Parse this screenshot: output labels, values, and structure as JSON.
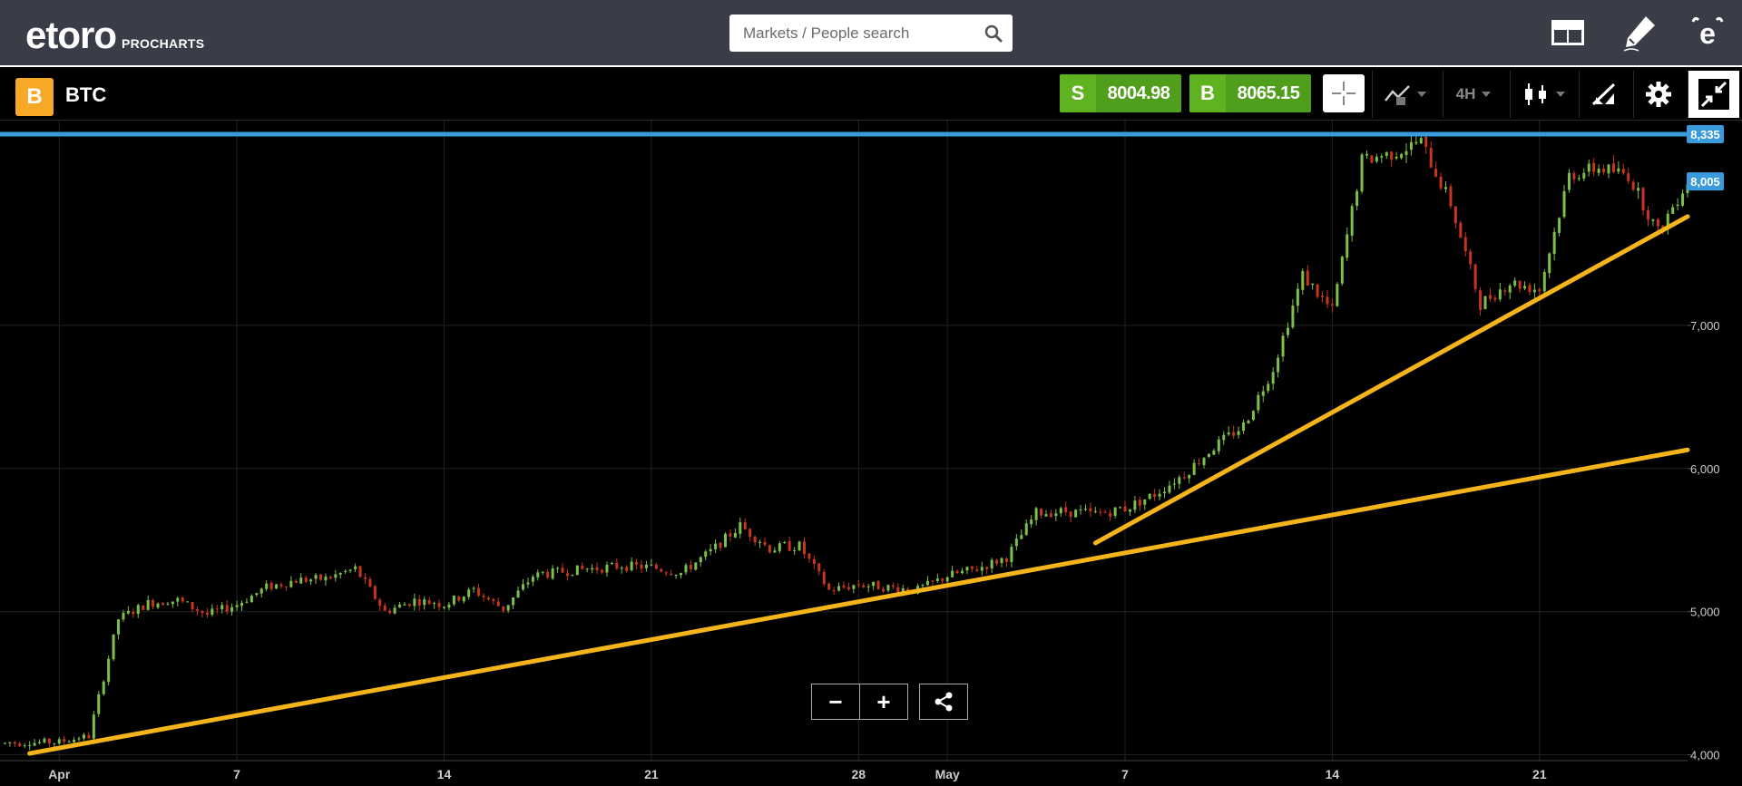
{
  "header": {
    "logo_text": "etoro",
    "logo_sub": "PROCHARTS",
    "search": {
      "placeholder": "Markets / People search"
    },
    "icons": [
      "layout-icon",
      "pencil-icon",
      "etoro-home-icon"
    ]
  },
  "toolbar": {
    "instrument": {
      "badge": "B",
      "symbol": "BTC"
    },
    "sell": {
      "letter": "S",
      "price": "8004.98"
    },
    "buy": {
      "letter": "B",
      "price": "8065.15"
    },
    "timeframe": "4H",
    "icons": [
      "crosshair-icon",
      "chart-type-icon",
      "candlestick-icon",
      "draw-tools-icon",
      "settings-icon",
      "collapse-icon"
    ]
  },
  "chart_data": {
    "type": "candlestick",
    "symbol": "BTC",
    "timeframe": "4H",
    "x_labels": [
      {
        "label": "Apr",
        "date": "2018-04-01"
      },
      {
        "label": "7",
        "date": "2018-04-07"
      },
      {
        "label": "14",
        "date": "2018-04-14"
      },
      {
        "label": "21",
        "date": "2018-04-21"
      },
      {
        "label": "28",
        "date": "2018-04-28"
      },
      {
        "label": "May",
        "date": "2018-05-01"
      },
      {
        "label": "7",
        "date": "2018-05-07"
      },
      {
        "label": "14",
        "date": "2018-05-14"
      },
      {
        "label": "21",
        "date": "2018-05-21"
      }
    ],
    "x_range": [
      "2018-03-30",
      "2018-05-26"
    ],
    "y_ticks": [
      {
        "value": 4000,
        "label": "4,000"
      },
      {
        "value": 5000,
        "label": "5,000"
      },
      {
        "value": 6000,
        "label": "6,000"
      },
      {
        "value": 7000,
        "label": "7,000"
      }
    ],
    "y_range": [
      3960,
      8430
    ],
    "price_tags": [
      {
        "value": 8335,
        "label": "8,335",
        "color": "#3a9bdc"
      },
      {
        "value": 8005,
        "label": "8,005",
        "color": "#3a9bdc"
      }
    ],
    "horizontal_lines": [
      {
        "value": 8335,
        "color": "#3a9bdc"
      }
    ],
    "trend_lines": [
      {
        "color": "#f5b51a",
        "from": {
          "date": "2018-03-31",
          "price": 4010
        },
        "to": {
          "date": "2018-05-26",
          "price": 6130
        }
      },
      {
        "color": "#f5b51a",
        "from": {
          "date": "2018-05-06",
          "price": 5480
        },
        "to": {
          "date": "2018-05-26",
          "price": 7760
        }
      }
    ],
    "price_path": [
      [
        "2018-03-30",
        4080
      ],
      [
        "2018-04-01",
        4090
      ],
      [
        "2018-04-02",
        4130
      ],
      [
        "2018-04-03",
        4950
      ],
      [
        "2018-04-04",
        5060
      ],
      [
        "2018-04-05",
        5080
      ],
      [
        "2018-04-06",
        4980
      ],
      [
        "2018-04-07",
        5050
      ],
      [
        "2018-04-08",
        5170
      ],
      [
        "2018-04-09",
        5220
      ],
      [
        "2018-04-10",
        5230
      ],
      [
        "2018-04-11",
        5300
      ],
      [
        "2018-04-12",
        5000
      ],
      [
        "2018-04-13",
        5080
      ],
      [
        "2018-04-14",
        5050
      ],
      [
        "2018-04-15",
        5150
      ],
      [
        "2018-04-16",
        5020
      ],
      [
        "2018-04-17",
        5250
      ],
      [
        "2018-04-18",
        5280
      ],
      [
        "2018-04-19",
        5300
      ],
      [
        "2018-04-20",
        5320
      ],
      [
        "2018-04-21",
        5310
      ],
      [
        "2018-04-22",
        5270
      ],
      [
        "2018-04-23",
        5420
      ],
      [
        "2018-04-24",
        5600
      ],
      [
        "2018-04-25",
        5440
      ],
      [
        "2018-04-26",
        5460
      ],
      [
        "2018-04-27",
        5150
      ],
      [
        "2018-04-28",
        5190
      ],
      [
        "2018-04-29",
        5170
      ],
      [
        "2018-04-30",
        5150
      ],
      [
        "2018-05-01",
        5250
      ],
      [
        "2018-05-02",
        5300
      ],
      [
        "2018-05-03",
        5380
      ],
      [
        "2018-05-04",
        5690
      ],
      [
        "2018-05-05",
        5700
      ],
      [
        "2018-05-06",
        5680
      ],
      [
        "2018-05-07",
        5720
      ],
      [
        "2018-05-08",
        5820
      ],
      [
        "2018-05-09",
        5960
      ],
      [
        "2018-05-10",
        6150
      ],
      [
        "2018-05-11",
        6300
      ],
      [
        "2018-05-12",
        6700
      ],
      [
        "2018-05-13",
        7350
      ],
      [
        "2018-05-14",
        7100
      ],
      [
        "2018-05-15",
        8150
      ],
      [
        "2018-05-16",
        8200
      ],
      [
        "2018-05-17",
        8280
      ],
      [
        "2018-05-18",
        7850
      ],
      [
        "2018-05-19",
        7150
      ],
      [
        "2018-05-20",
        7300
      ],
      [
        "2018-05-21",
        7250
      ],
      [
        "2018-05-22",
        8050
      ],
      [
        "2018-05-23",
        8100
      ],
      [
        "2018-05-24",
        8050
      ],
      [
        "2018-05-25",
        7650
      ],
      [
        "2018-05-26",
        8010
      ]
    ]
  },
  "zoom": {
    "out_label": "−",
    "in_label": "+"
  },
  "colors": {
    "topbar": "#3a3d47",
    "up": "#7cc04a",
    "down": "#c8351e",
    "accent": "#3a9bdc",
    "trend": "#f5b51a",
    "trade": "#5fb320"
  }
}
